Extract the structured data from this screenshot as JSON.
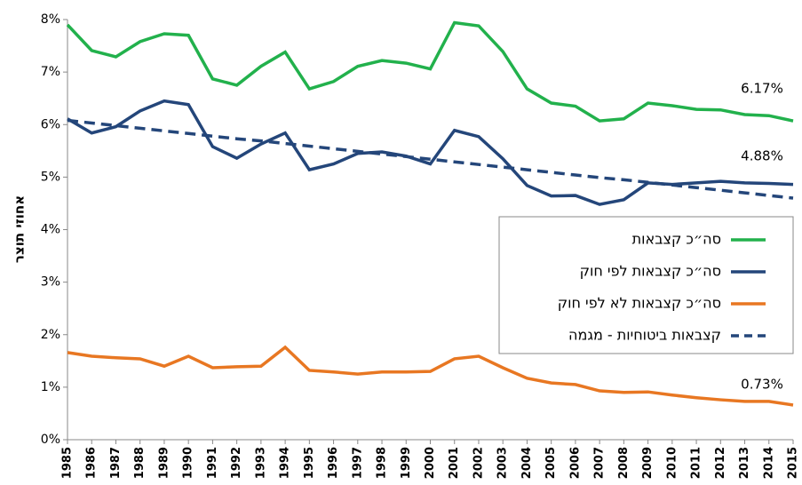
{
  "chart_data": {
    "type": "line",
    "y_label": "אחוזי תוצר",
    "x": [
      1985,
      1986,
      1987,
      1988,
      1989,
      1990,
      1991,
      1992,
      1993,
      1994,
      1995,
      1996,
      1997,
      1998,
      1999,
      2000,
      2001,
      2002,
      2003,
      2004,
      2005,
      2006,
      2007,
      2008,
      2009,
      2010,
      2011,
      2012,
      2013,
      2014,
      2015
    ],
    "xlim": [
      1985,
      2015
    ],
    "ylim": [
      0,
      8
    ],
    "yticks": [
      {
        "value": 0,
        "label": "0%"
      },
      {
        "value": 1,
        "label": "1%"
      },
      {
        "value": 2,
        "label": "2%"
      },
      {
        "value": 3,
        "label": "3%"
      },
      {
        "value": 4,
        "label": "4%"
      },
      {
        "value": 5,
        "label": "5%"
      },
      {
        "value": 6,
        "label": "6%"
      },
      {
        "value": 7,
        "label": "7%"
      },
      {
        "value": 8,
        "label": "8%"
      }
    ],
    "series": [
      {
        "name": "סה״כ קצבאות",
        "color": "#22b14c",
        "style": "solid",
        "values": [
          7.9,
          7.41,
          7.29,
          7.58,
          7.73,
          7.7,
          6.87,
          6.75,
          7.11,
          7.38,
          6.68,
          6.82,
          7.11,
          7.22,
          7.17,
          7.06,
          7.94,
          7.88,
          7.39,
          6.68,
          6.41,
          6.35,
          6.07,
          6.11,
          6.41,
          6.36,
          6.29,
          6.28,
          6.19,
          6.17,
          6.07
        ]
      },
      {
        "name": "סה״כ קצבאות לפי חוק",
        "color": "#24467a",
        "style": "solid",
        "values": [
          6.11,
          5.84,
          5.96,
          6.26,
          6.45,
          6.38,
          5.58,
          5.36,
          5.63,
          5.84,
          5.14,
          5.25,
          5.45,
          5.48,
          5.4,
          5.25,
          5.89,
          5.77,
          5.35,
          4.84,
          4.64,
          4.65,
          4.48,
          4.57,
          4.89,
          4.86,
          4.89,
          4.92,
          4.89,
          4.88,
          4.86
        ]
      },
      {
        "name": "סה״כ קצבאות לא לפי חוק",
        "color": "#e87722",
        "style": "solid",
        "values": [
          1.66,
          1.59,
          1.56,
          1.54,
          1.4,
          1.59,
          1.37,
          1.39,
          1.4,
          1.76,
          1.32,
          1.29,
          1.25,
          1.29,
          1.29,
          1.3,
          1.54,
          1.59,
          1.37,
          1.17,
          1.08,
          1.05,
          0.93,
          0.9,
          0.91,
          0.85,
          0.8,
          0.76,
          0.73,
          0.73,
          0.66
        ]
      },
      {
        "name": "קצבאות ביטוחיות - מגמה",
        "color": "#24467a",
        "style": "dashed",
        "values": [
          6.08,
          6.03,
          5.98,
          5.93,
          5.88,
          5.83,
          5.78,
          5.73,
          5.69,
          5.64,
          5.59,
          5.54,
          5.49,
          5.44,
          5.39,
          5.34,
          5.29,
          5.24,
          5.19,
          5.14,
          5.09,
          5.04,
          4.99,
          4.95,
          4.9,
          4.85,
          4.8,
          4.75,
          4.7,
          4.65,
          4.6
        ]
      }
    ],
    "annotations": [
      "6.17%",
      "4.88%",
      "0.73%"
    ]
  }
}
